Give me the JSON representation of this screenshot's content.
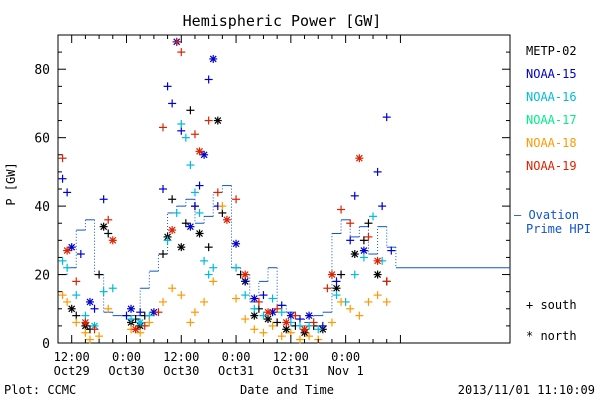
{
  "chart_data": {
    "type": "scatter",
    "title": "Hemispheric Power [GW]",
    "ylabel": "P [GW]",
    "xlabel": "Date and Time",
    "ylim": [
      0,
      90
    ],
    "xlim_hours": [
      -15,
      84
    ],
    "y_ticks": [
      0,
      20,
      40,
      60,
      80
    ],
    "x_ticks": [
      {
        "h": -12,
        "l1": "12:00",
        "l2": "Oct29"
      },
      {
        "h": 0,
        "l1": "0:00",
        "l2": "Oct30"
      },
      {
        "h": 12,
        "l1": "12:00",
        "l2": "Oct30"
      },
      {
        "h": 24,
        "l1": "0:00",
        "l2": "Oct31"
      },
      {
        "h": 36,
        "l1": "12:00",
        "l2": "Oct31"
      },
      {
        "h": 48,
        "l1": "0:00",
        "l2": "Nov 1"
      }
    ],
    "footer_left": "Plot: CCMC",
    "footer_right": "2013/11/01 11:10:09",
    "legend_title": "",
    "series": [
      {
        "name": "METP-02",
        "color": "#000000",
        "points": [
          [
            -12,
            10,
            "n"
          ],
          [
            -11,
            8,
            "s"
          ],
          [
            -9,
            5,
            "n"
          ],
          [
            -8,
            4,
            "s"
          ],
          [
            -6,
            20,
            "s"
          ],
          [
            -5,
            34,
            "n"
          ],
          [
            -4,
            32,
            "s"
          ],
          [
            1,
            6,
            "n"
          ],
          [
            2,
            7,
            "s"
          ],
          [
            3,
            5,
            "n"
          ],
          [
            4,
            8,
            "s"
          ],
          [
            8,
            26,
            "s"
          ],
          [
            9,
            31,
            "n"
          ],
          [
            10,
            42,
            "s"
          ],
          [
            12,
            28,
            "n"
          ],
          [
            13,
            35,
            "s"
          ],
          [
            14,
            68,
            "s"
          ],
          [
            15,
            40,
            "s"
          ],
          [
            16,
            32,
            "n"
          ],
          [
            18,
            28,
            "s"
          ],
          [
            20,
            65,
            "n"
          ],
          [
            21,
            38,
            "s"
          ],
          [
            25,
            20,
            "s"
          ],
          [
            26,
            18,
            "n"
          ],
          [
            28,
            8,
            "n"
          ],
          [
            29,
            10,
            "s"
          ],
          [
            31,
            7,
            "n"
          ],
          [
            33,
            6,
            "s"
          ],
          [
            35,
            4,
            "n"
          ],
          [
            37,
            5,
            "s"
          ],
          [
            39,
            3,
            "n"
          ],
          [
            41,
            5,
            "s"
          ],
          [
            43,
            4,
            "n"
          ],
          [
            46,
            16,
            "n"
          ],
          [
            47,
            20,
            "s"
          ],
          [
            50,
            26,
            "n"
          ],
          [
            52,
            30,
            "s"
          ],
          [
            53,
            35,
            "s"
          ],
          [
            55,
            20,
            "n"
          ],
          [
            57,
            18,
            "s"
          ]
        ]
      },
      {
        "name": "NOAA-15",
        "color": "#0000cc",
        "points": [
          [
            -14,
            48,
            "s"
          ],
          [
            -13,
            44,
            "s"
          ],
          [
            -12,
            28,
            "n"
          ],
          [
            -10,
            26,
            "s"
          ],
          [
            -8,
            12,
            "n"
          ],
          [
            -7,
            10,
            "s"
          ],
          [
            -5,
            42,
            "s"
          ],
          [
            0,
            8,
            "s"
          ],
          [
            1,
            10,
            "n"
          ],
          [
            3,
            9,
            "s"
          ],
          [
            6,
            9,
            "n"
          ],
          [
            8,
            45,
            "s"
          ],
          [
            9,
            75,
            "s"
          ],
          [
            10,
            70,
            "s"
          ],
          [
            11,
            88,
            "n"
          ],
          [
            12,
            62,
            "s"
          ],
          [
            14,
            34,
            "n"
          ],
          [
            15,
            40,
            "s"
          ],
          [
            16,
            46,
            "s"
          ],
          [
            17,
            55,
            "n"
          ],
          [
            18,
            77,
            "s"
          ],
          [
            19,
            83,
            "n"
          ],
          [
            20,
            40,
            "s"
          ],
          [
            24,
            29,
            "n"
          ],
          [
            26,
            18,
            "s"
          ],
          [
            28,
            13,
            "n"
          ],
          [
            30,
            14,
            "s"
          ],
          [
            32,
            9,
            "n"
          ],
          [
            34,
            11,
            "s"
          ],
          [
            36,
            8,
            "n"
          ],
          [
            38,
            7,
            "s"
          ],
          [
            40,
            8,
            "n"
          ],
          [
            43,
            5,
            "s"
          ],
          [
            46,
            18,
            "s"
          ],
          [
            49,
            30,
            "s"
          ],
          [
            50,
            43,
            "s"
          ],
          [
            52,
            27,
            "n"
          ],
          [
            55,
            50,
            "s"
          ],
          [
            56,
            40,
            "s"
          ],
          [
            57,
            66,
            "s"
          ],
          [
            58,
            27,
            "s"
          ]
        ]
      },
      {
        "name": "NOAA-16",
        "color": "#00bbdd",
        "points": [
          [
            -14,
            24,
            "s"
          ],
          [
            -13,
            22,
            "s"
          ],
          [
            -11,
            14,
            "s"
          ],
          [
            -9,
            8,
            "s"
          ],
          [
            -7,
            5,
            "n"
          ],
          [
            -5,
            15,
            "s"
          ],
          [
            -3,
            16,
            "s"
          ],
          [
            1,
            7,
            "s"
          ],
          [
            3,
            6,
            "n"
          ],
          [
            5,
            8,
            "s"
          ],
          [
            9,
            30,
            "s"
          ],
          [
            11,
            38,
            "s"
          ],
          [
            12,
            64,
            "s"
          ],
          [
            13,
            60,
            "s"
          ],
          [
            14,
            52,
            "s"
          ],
          [
            15,
            44,
            "s"
          ],
          [
            16,
            38,
            "s"
          ],
          [
            17,
            24,
            "s"
          ],
          [
            18,
            20,
            "s"
          ],
          [
            19,
            22,
            "s"
          ],
          [
            24,
            22,
            "s"
          ],
          [
            26,
            14,
            "s"
          ],
          [
            28,
            10,
            "s"
          ],
          [
            30,
            8,
            "s"
          ],
          [
            32,
            13,
            "s"
          ],
          [
            34,
            9,
            "s"
          ],
          [
            36,
            6,
            "s"
          ],
          [
            38,
            5,
            "s"
          ],
          [
            40,
            5,
            "s"
          ],
          [
            42,
            4,
            "s"
          ],
          [
            46,
            14,
            "s"
          ],
          [
            48,
            12,
            "s"
          ],
          [
            50,
            20,
            "s"
          ],
          [
            52,
            25,
            "s"
          ],
          [
            54,
            37,
            "s"
          ],
          [
            56,
            24,
            "s"
          ]
        ]
      },
      {
        "name": "NOAA-17",
        "color": "#00ee88",
        "points": []
      },
      {
        "name": "NOAA-18",
        "color": "#ff9900",
        "points": [
          [
            -14,
            14,
            "s"
          ],
          [
            -13,
            12,
            "s"
          ],
          [
            -11,
            6,
            "s"
          ],
          [
            -9,
            3,
            "s"
          ],
          [
            -8,
            1,
            "s"
          ],
          [
            -6,
            2,
            "s"
          ],
          [
            -4,
            10,
            "s"
          ],
          [
            1,
            4,
            "s"
          ],
          [
            3,
            3,
            "s"
          ],
          [
            5,
            6,
            "s"
          ],
          [
            8,
            12,
            "s"
          ],
          [
            10,
            16,
            "s"
          ],
          [
            12,
            14,
            "s"
          ],
          [
            14,
            6,
            "s"
          ],
          [
            15,
            9,
            "s"
          ],
          [
            17,
            12,
            "s"
          ],
          [
            19,
            18,
            "s"
          ],
          [
            21,
            40,
            "s"
          ],
          [
            24,
            13,
            "s"
          ],
          [
            26,
            7,
            "s"
          ],
          [
            28,
            4,
            "s"
          ],
          [
            30,
            3,
            "s"
          ],
          [
            32,
            5,
            "s"
          ],
          [
            34,
            2,
            "s"
          ],
          [
            36,
            3,
            "s"
          ],
          [
            38,
            1,
            "s"
          ],
          [
            40,
            2,
            "s"
          ],
          [
            42,
            1,
            "s"
          ],
          [
            45,
            6,
            "s"
          ],
          [
            47,
            12,
            "s"
          ],
          [
            49,
            10,
            "s"
          ],
          [
            51,
            8,
            "s"
          ],
          [
            53,
            12,
            "s"
          ],
          [
            55,
            14,
            "s"
          ],
          [
            57,
            12,
            "s"
          ]
        ]
      },
      {
        "name": "NOAA-19",
        "color": "#dd2200",
        "points": [
          [
            -14,
            54,
            "s"
          ],
          [
            -13,
            27,
            "n"
          ],
          [
            -11,
            18,
            "s"
          ],
          [
            -9,
            6,
            "n"
          ],
          [
            -7,
            4,
            "s"
          ],
          [
            -4,
            36,
            "s"
          ],
          [
            -3,
            30,
            "n"
          ],
          [
            2,
            4,
            "n"
          ],
          [
            4,
            5,
            "s"
          ],
          [
            7,
            9,
            "s"
          ],
          [
            8,
            63,
            "s"
          ],
          [
            10,
            33,
            "n"
          ],
          [
            11,
            88,
            "s"
          ],
          [
            12,
            85,
            "s"
          ],
          [
            15,
            61,
            "s"
          ],
          [
            16,
            56,
            "n"
          ],
          [
            18,
            65,
            "s"
          ],
          [
            20,
            44,
            "s"
          ],
          [
            22,
            36,
            "n"
          ],
          [
            24,
            42,
            "s"
          ],
          [
            26,
            20,
            "n"
          ],
          [
            29,
            12,
            "s"
          ],
          [
            31,
            9,
            "n"
          ],
          [
            33,
            10,
            "s"
          ],
          [
            35,
            6,
            "n"
          ],
          [
            37,
            8,
            "s"
          ],
          [
            39,
            4,
            "n"
          ],
          [
            41,
            6,
            "s"
          ],
          [
            44,
            16,
            "s"
          ],
          [
            45,
            20,
            "n"
          ],
          [
            47,
            39,
            "s"
          ],
          [
            49,
            35,
            "s"
          ],
          [
            51,
            54,
            "n"
          ],
          [
            53,
            31,
            "s"
          ],
          [
            55,
            24,
            "n"
          ],
          [
            57,
            18,
            "s"
          ]
        ]
      }
    ],
    "ovation_label_1": "— Ovation",
    "ovation_label_2": "Prime HPI",
    "ovation_color": "#1155cc",
    "ovation_step": [
      [
        -15,
        20
      ],
      [
        -13,
        22
      ],
      [
        -11,
        33
      ],
      [
        -9,
        36
      ],
      [
        -7,
        20
      ],
      [
        -5,
        9
      ],
      [
        -3,
        8
      ],
      [
        -1,
        8
      ],
      [
        1,
        8
      ],
      [
        3,
        16
      ],
      [
        5,
        21
      ],
      [
        7,
        26
      ],
      [
        9,
        38
      ],
      [
        11,
        40
      ],
      [
        13,
        42
      ],
      [
        15,
        35
      ],
      [
        17,
        37
      ],
      [
        19,
        44
      ],
      [
        21,
        46
      ],
      [
        23,
        22
      ],
      [
        25,
        20
      ],
      [
        27,
        12
      ],
      [
        29,
        18
      ],
      [
        31,
        22
      ],
      [
        33,
        11
      ],
      [
        35,
        9
      ],
      [
        37,
        7
      ],
      [
        39,
        6
      ],
      [
        41,
        8
      ],
      [
        43,
        9
      ],
      [
        45,
        32
      ],
      [
        47,
        36
      ],
      [
        49,
        31
      ],
      [
        51,
        34
      ],
      [
        53,
        26
      ],
      [
        55,
        34
      ],
      [
        57,
        28
      ],
      [
        59,
        22
      ],
      [
        84,
        22
      ]
    ],
    "marker_legend": [
      {
        "symbol": "+",
        "label": "south"
      },
      {
        "symbol": "*",
        "label": "north"
      }
    ]
  }
}
